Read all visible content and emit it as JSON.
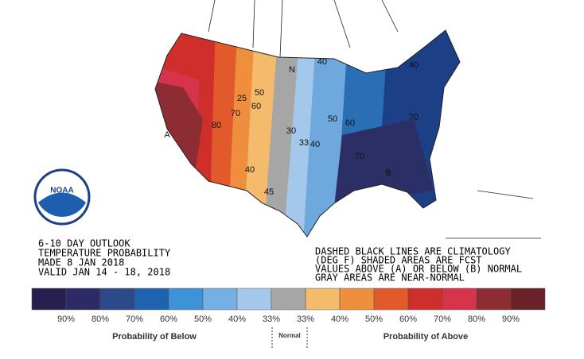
{
  "header": {
    "lines": [
      "6-10 DAY OUTLOOK",
      "TEMPERATURE PROBABILITY",
      "MADE  8 JAN 2018",
      "VALID  JAN 14 - 18, 2018"
    ]
  },
  "notes": [
    "DASHED BLACK LINES ARE CLIMATOLOGY",
    "(DEG F) SHADED AREAS ARE FCST",
    "VALUES ABOVE (A) OR BELOW (B) NORMAL",
    "GRAY AREAS ARE NEAR-NORMAL"
  ],
  "logo": "NOAA",
  "map": {
    "labels": [
      "A",
      "B",
      "N",
      "50",
      "25",
      "60",
      "70",
      "80",
      "40",
      "45",
      "30",
      "33",
      "40",
      "50",
      "60",
      "70",
      "70",
      "40",
      "40"
    ]
  },
  "legend": {
    "colors": [
      "#262050",
      "#2e2a66",
      "#2c4a8a",
      "#1e63b0",
      "#3d92d8",
      "#74b0e4",
      "#a3c8ec",
      "#a6a6a6",
      "#f3bb6b",
      "#ef8e3c",
      "#e2592b",
      "#cf2f2a",
      "#d6344a",
      "#8e2c33",
      "#6a2228"
    ],
    "labels": [
      "90%",
      "80%",
      "70%",
      "60%",
      "50%",
      "40%",
      "33%",
      "33%",
      "40%",
      "50%",
      "60%",
      "70%",
      "80%",
      "90%"
    ],
    "below": "Probability of Below",
    "normal": "Normal",
    "above": "Probability of Above"
  }
}
